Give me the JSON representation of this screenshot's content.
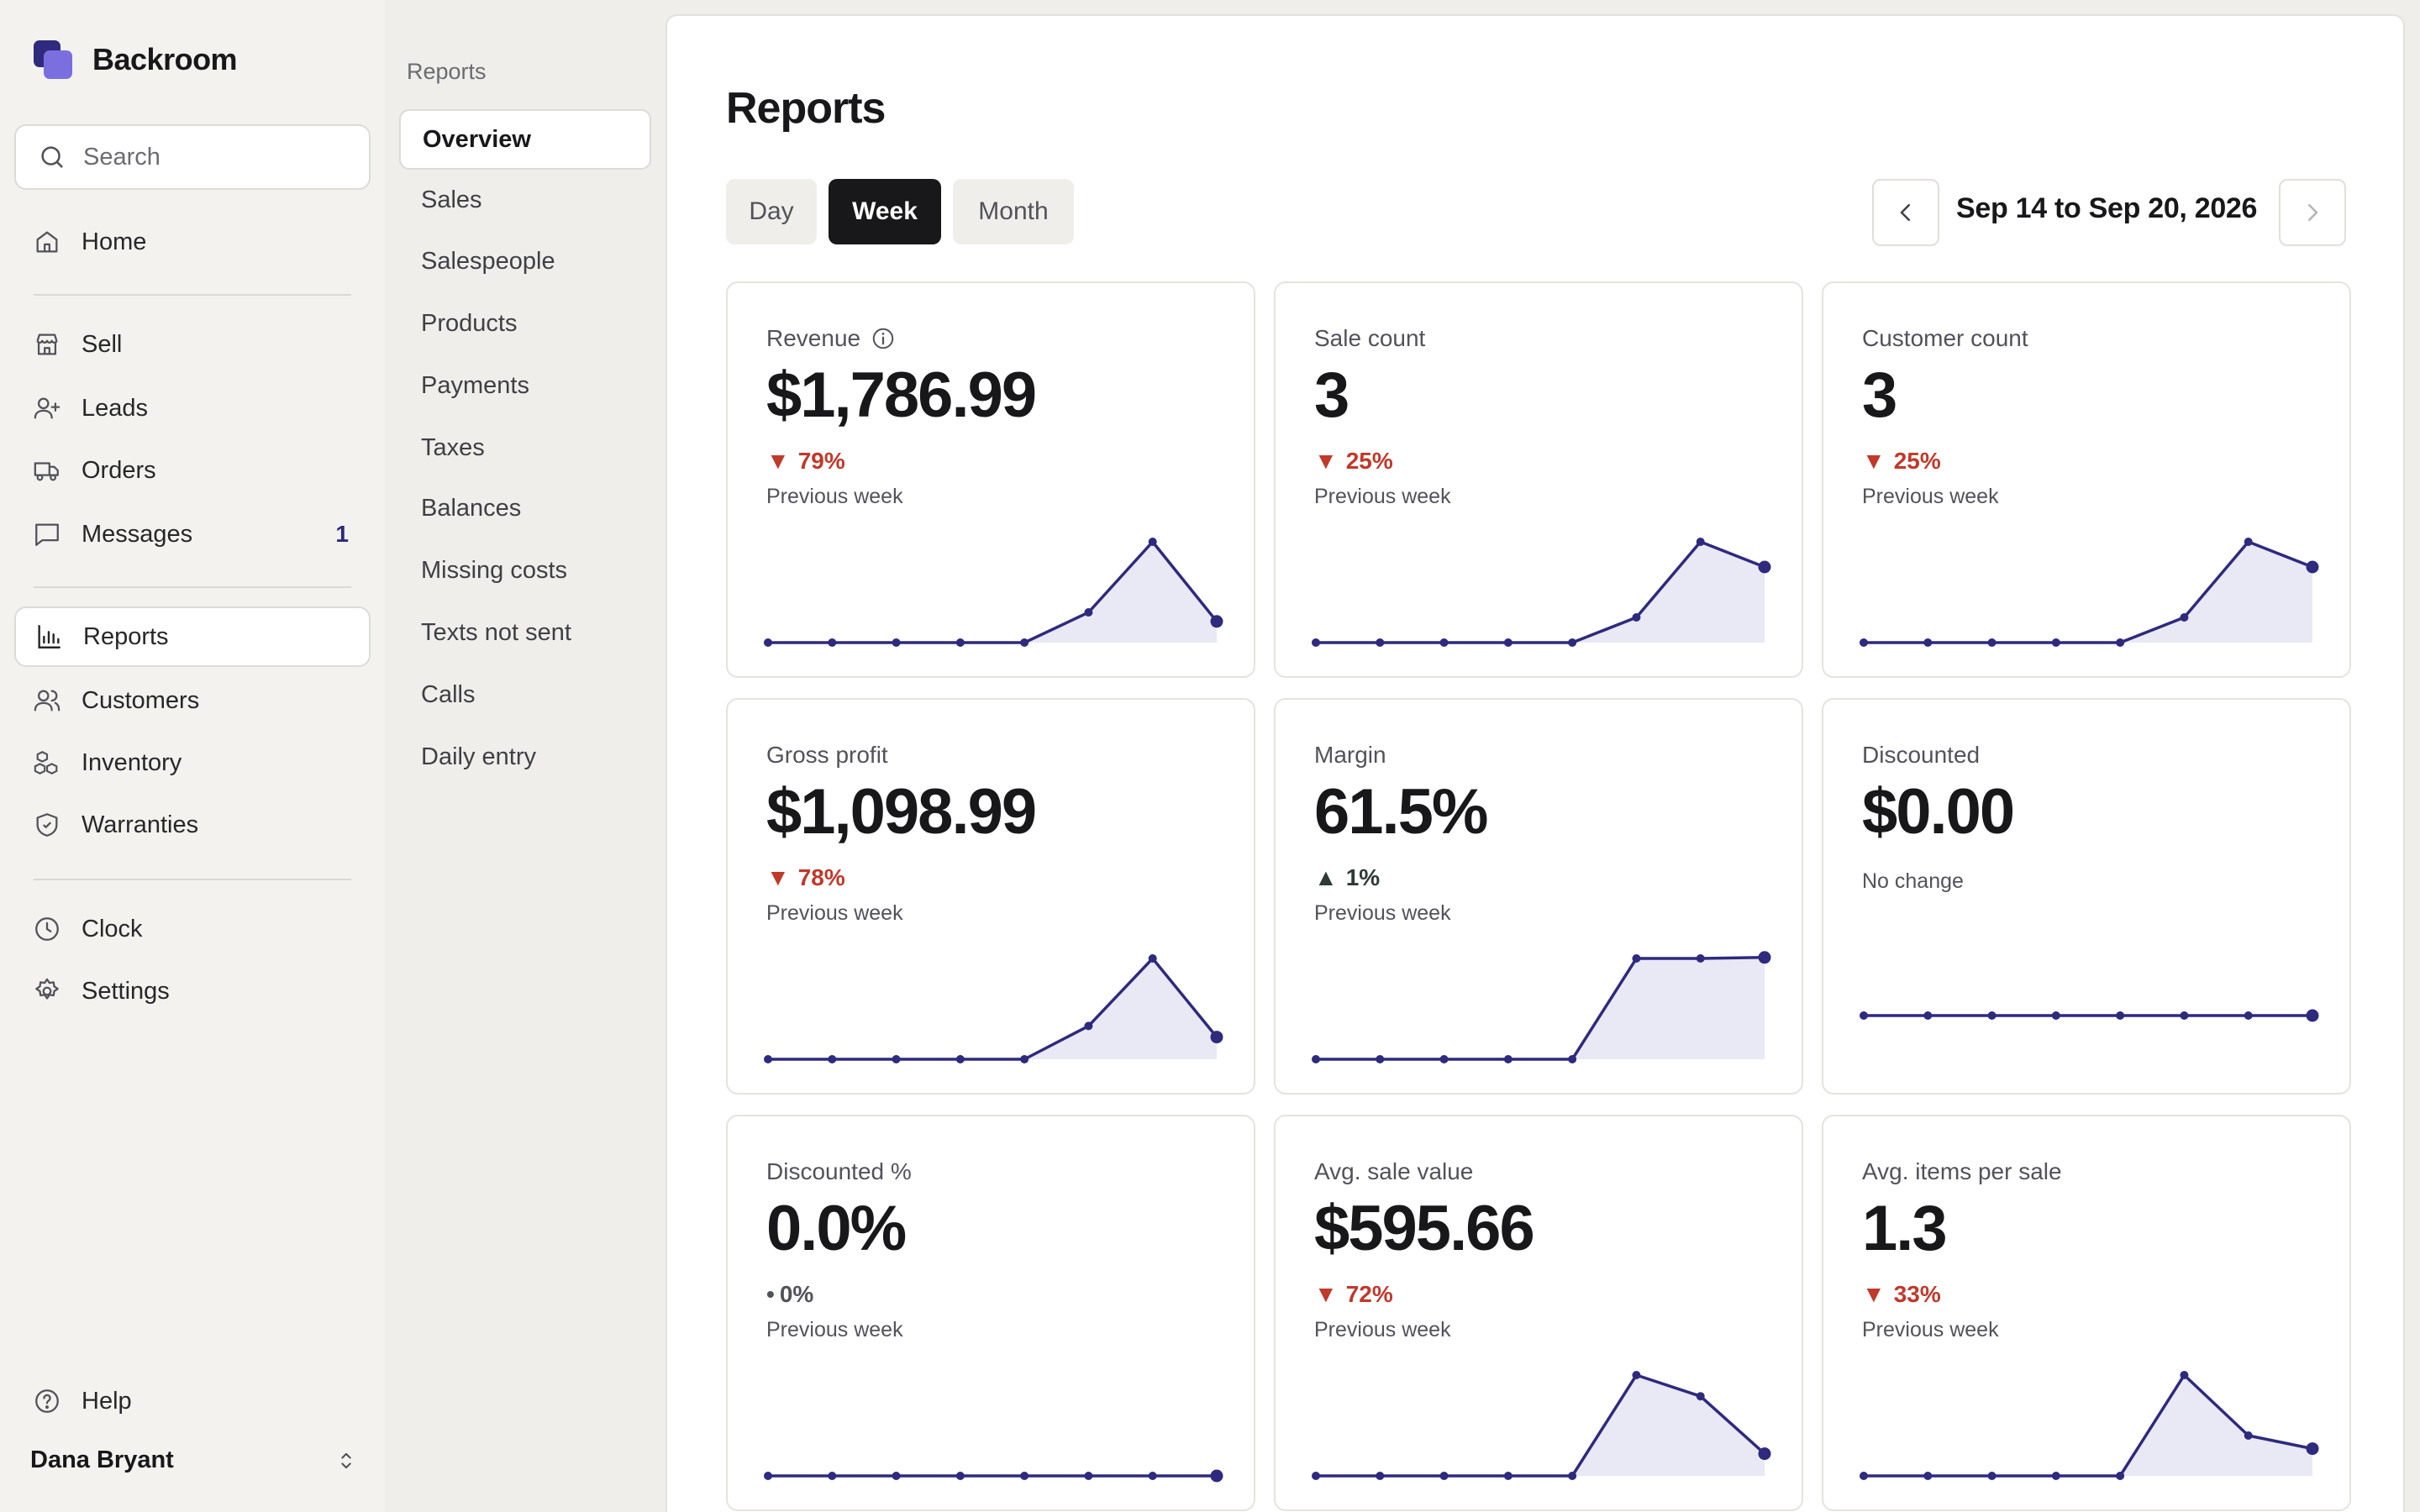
{
  "app": {
    "name": "Backroom"
  },
  "colors": {
    "accent": "#2e2a7d",
    "spark_fill": "#e9e8f5",
    "down": "#c0392b",
    "up": "#2d3a35"
  },
  "search": {
    "placeholder": "Search"
  },
  "sidebar": {
    "items": [
      {
        "label": "Home",
        "icon": "home-icon"
      },
      {
        "label": "Sell",
        "icon": "store-icon"
      },
      {
        "label": "Leads",
        "icon": "user-plus-icon"
      },
      {
        "label": "Orders",
        "icon": "truck-icon"
      },
      {
        "label": "Messages",
        "icon": "message-icon",
        "badge": "1"
      },
      {
        "label": "Reports",
        "icon": "bar-chart-icon",
        "active": true
      },
      {
        "label": "Customers",
        "icon": "users-icon"
      },
      {
        "label": "Inventory",
        "icon": "boxes-icon"
      },
      {
        "label": "Warranties",
        "icon": "shield-check-icon"
      },
      {
        "label": "Clock",
        "icon": "clock-icon"
      },
      {
        "label": "Settings",
        "icon": "gear-icon"
      },
      {
        "label": "Help",
        "icon": "help-circle-icon"
      }
    ],
    "user": {
      "name": "Dana Bryant"
    }
  },
  "subnav": {
    "title": "Reports",
    "items": [
      "Overview",
      "Sales",
      "Salespeople",
      "Products",
      "Payments",
      "Taxes",
      "Balances",
      "Missing costs",
      "Texts not sent",
      "Calls",
      "Daily entry"
    ],
    "active": "Overview"
  },
  "main": {
    "title": "Reports",
    "periods": [
      "Day",
      "Week",
      "Month"
    ],
    "active_period": "Week",
    "date_range": "Sep 14 to Sep 20, 2026"
  },
  "cards": [
    {
      "label": "Revenue",
      "info": true,
      "value": "$1,786.99",
      "direction": "down",
      "change": "79%",
      "compare": "Previous week",
      "spark": [
        0,
        0,
        0,
        0,
        0,
        0.3,
        1,
        0.21
      ]
    },
    {
      "label": "Sale count",
      "value": "3",
      "direction": "down",
      "change": "25%",
      "compare": "Previous week",
      "spark": [
        0,
        0,
        0,
        0,
        0,
        0.25,
        1,
        0.75
      ]
    },
    {
      "label": "Customer count",
      "value": "3",
      "direction": "down",
      "change": "25%",
      "compare": "Previous week",
      "spark": [
        0,
        0,
        0,
        0,
        0,
        0.25,
        1,
        0.75
      ]
    },
    {
      "label": "Gross profit",
      "value": "$1,098.99",
      "direction": "down",
      "change": "78%",
      "compare": "Previous week",
      "spark": [
        0,
        0,
        0,
        0,
        0,
        0.33,
        1,
        0.22
      ]
    },
    {
      "label": "Margin",
      "value": "61.5%",
      "direction": "up",
      "change": "1%",
      "compare": "Previous week",
      "spark": [
        0,
        0,
        0,
        0,
        0,
        1,
        1,
        1.01
      ]
    },
    {
      "label": "Discounted",
      "value": "$0.00",
      "direction": "none",
      "change": "",
      "compare": "No change",
      "spark": [
        0,
        0,
        0,
        0,
        0,
        0,
        0,
        0
      ]
    },
    {
      "label": "Discounted %",
      "value": "0.0%",
      "direction": "flat",
      "change": "0%",
      "compare": "Previous week",
      "spark": [
        0,
        0,
        0,
        0,
        0,
        0,
        0,
        0
      ]
    },
    {
      "label": "Avg. sale value",
      "value": "$595.66",
      "direction": "down",
      "change": "72%",
      "compare": "Previous week",
      "spark": [
        0,
        0,
        0,
        0,
        0,
        1,
        0.79,
        0.22
      ]
    },
    {
      "label": "Avg. items per sale",
      "value": "1.3",
      "direction": "down",
      "change": "33%",
      "compare": "Previous week",
      "spark": [
        0,
        0,
        0,
        0,
        0,
        1,
        0.4,
        0.27
      ]
    }
  ]
}
